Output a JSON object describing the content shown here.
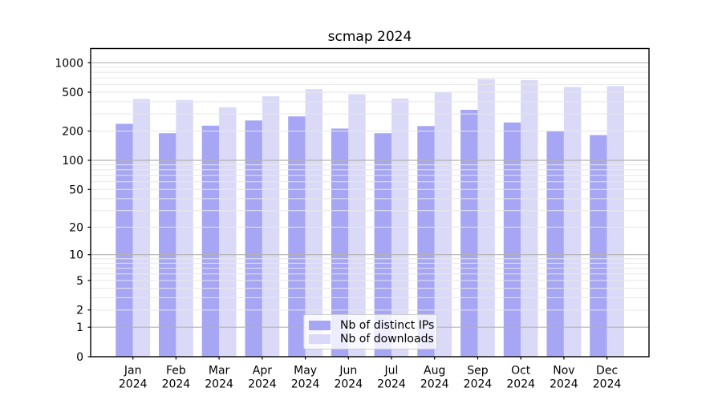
{
  "title": "scmap 2024",
  "chart_data": {
    "type": "bar",
    "title": "scmap 2024",
    "categories": [
      "Jan",
      "Feb",
      "Mar",
      "Apr",
      "May",
      "Jun",
      "Jul",
      "Aug",
      "Sep",
      "Oct",
      "Nov",
      "Dec"
    ],
    "x_tick_year": "2024",
    "series": [
      {
        "name": "Nb of distinct IPs",
        "color": "#a6a6f4",
        "values": [
          237,
          190,
          227,
          257,
          283,
          212,
          190,
          225,
          330,
          245,
          200,
          182
        ]
      },
      {
        "name": "Nb of downloads",
        "color": "#dadaf8",
        "values": [
          427,
          416,
          351,
          454,
          538,
          478,
          432,
          506,
          680,
          665,
          566,
          577
        ]
      }
    ],
    "yscale": "log1p",
    "yticks": [
      0,
      1,
      2,
      5,
      10,
      20,
      50,
      100,
      200,
      500,
      1000
    ],
    "ylim": [
      0,
      1400
    ],
    "grid": "both",
    "legend_position": "lower center",
    "colors": {
      "background": "#ffffff",
      "grid_major": "#b2b2b2",
      "grid_minor": "#e7e7e7",
      "axis": "#000000",
      "text": "#000000",
      "legend_border": "#cccccc"
    }
  }
}
